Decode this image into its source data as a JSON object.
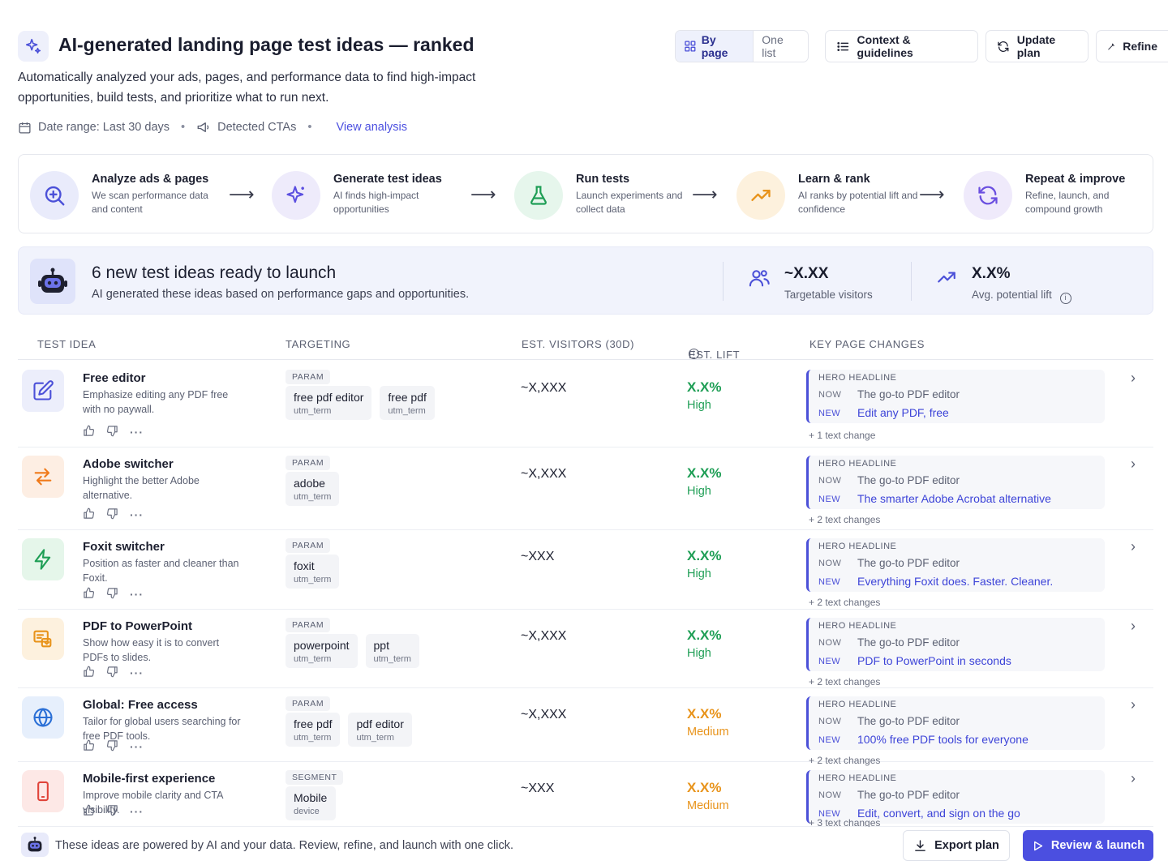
{
  "header": {
    "title": "AI-generated landing page test ideas — ranked",
    "subtitle": "Automatically analyzed your ads, pages, and performance data to find high-impact opportunities, build tests, and prioritize what to run next.",
    "date_range": "Date range: Last 30 days",
    "detected_ctas": "Detected CTAs",
    "view_analysis": "View analysis"
  },
  "toolbar": {
    "by_page": "By page",
    "one_list": "One list",
    "context": "Context & guidelines",
    "update": "Update plan",
    "refine": "Refine"
  },
  "steps": [
    {
      "title": "Analyze ads & pages",
      "desc": "We scan performance data and content",
      "icon": "search-zoom-icon",
      "color": "#e9ebfb"
    },
    {
      "title": "Generate test ideas",
      "desc": "AI finds high-impact opportunities",
      "icon": "sparkle-icon",
      "color": "#eeebfb"
    },
    {
      "title": "Run tests",
      "desc": "Launch experiments and collect data",
      "icon": "flask-icon",
      "color": "#e6f6ec"
    },
    {
      "title": "Learn & rank",
      "desc": "AI ranks by potential lift and confidence",
      "icon": "trend-up-icon",
      "color": "#fdf1dd"
    },
    {
      "title": "Repeat & improve",
      "desc": "Refine, launch, and compound growth",
      "icon": "refresh-icon",
      "color": "#efeafb"
    }
  ],
  "banner": {
    "title": "6 new test ideas ready to launch",
    "sub": "AI generated these ideas based on performance gaps and opportunities.",
    "visitors_value": "~X.XX",
    "visitors_label": "Targetable visitors",
    "lift_value": "X.X%",
    "lift_label": "Avg. potential lift"
  },
  "table": {
    "headers": [
      "TEST IDEA",
      "TARGETING",
      "EST. VISITORS (30D)",
      "EST. LIFT",
      "KEY PAGE CHANGES"
    ],
    "rows": [
      {
        "name": "Free editor",
        "desc": "Emphasize editing any PDF free with no paywall.",
        "icon": "edit-icon",
        "icon_color": "#4b50d8",
        "icon_bg": "#eceefb",
        "kind": "PARAM",
        "chips": [
          {
            "v": "free pdf editor",
            "k": "utm_term"
          },
          {
            "v": "free pdf",
            "k": "utm_term"
          }
        ],
        "visitors": "~X,XXX",
        "lift": "X.X%",
        "confidence": "High",
        "lift_color": "#1e9e55",
        "change_label": "HERO HEADLINE",
        "now_label": "NOW",
        "now": "The go-to PDF editor",
        "new_label": "NEW",
        "new": "Edit any PDF, free",
        "more": "+ 1 text change"
      },
      {
        "name": "Adobe switcher",
        "desc": "Highlight the better Adobe alternative.",
        "icon": "swap-arrows-icon",
        "icon_color": "#f07a1a",
        "icon_bg": "#fdeee3",
        "kind": "PARAM",
        "chips": [
          {
            "v": "adobe",
            "k": "utm_term"
          }
        ],
        "visitors": "~X,XXX",
        "lift": "X.X%",
        "confidence": "High",
        "lift_color": "#1e9e55",
        "change_label": "HERO HEADLINE",
        "now_label": "NOW",
        "now": "The go-to PDF editor",
        "new_label": "NEW",
        "new": "The smarter Adobe Acrobat alternative",
        "more": "+ 2 text changes"
      },
      {
        "name": "Foxit switcher",
        "desc": "Position as faster and cleaner than Foxit.",
        "icon": "lightning-icon",
        "icon_color": "#1e9e55",
        "icon_bg": "#e5f6ea",
        "kind": "PARAM",
        "chips": [
          {
            "v": "foxit",
            "k": "utm_term"
          }
        ],
        "visitors": "~XXX",
        "lift": "X.X%",
        "confidence": "High",
        "lift_color": "#1e9e55",
        "change_label": "HERO HEADLINE",
        "now_label": "NOW",
        "now": "The go-to PDF editor",
        "new_label": "NEW",
        "new": "Everything Foxit does. Faster. Cleaner.",
        "more": "+ 2 text changes"
      },
      {
        "name": "PDF to PowerPoint",
        "desc": "Show how easy it is to convert PDFs to slides.",
        "icon": "slides-icon",
        "icon_color": "#e8931a",
        "icon_bg": "#fdf1de",
        "kind": "PARAM",
        "chips": [
          {
            "v": "powerpoint",
            "k": "utm_term"
          },
          {
            "v": "ppt",
            "k": "utm_term"
          }
        ],
        "visitors": "~X,XXX",
        "lift": "X.X%",
        "confidence": "High",
        "lift_color": "#1e9e55",
        "change_label": "HERO HEADLINE",
        "now_label": "NOW",
        "now": "The go-to PDF editor",
        "new_label": "NEW",
        "new": "PDF to PowerPoint in seconds",
        "more": "+ 2 text changes"
      },
      {
        "name": "Global: Free access",
        "desc": "Tailor for global users searching for free PDF tools.",
        "icon": "globe-icon",
        "icon_color": "#2a6fd6",
        "icon_bg": "#e6effc",
        "kind": "PARAM",
        "chips": [
          {
            "v": "free pdf",
            "k": "utm_term"
          },
          {
            "v": "pdf editor",
            "k": "utm_term"
          }
        ],
        "visitors": "~X,XXX",
        "lift": "X.X%",
        "confidence": "Medium",
        "lift_color": "#e8931a",
        "change_label": "HERO HEADLINE",
        "now_label": "NOW",
        "now": "The go-to PDF editor",
        "new_label": "NEW",
        "new": "100% free PDF tools for everyone",
        "more": "+ 2 text changes"
      },
      {
        "name": "Mobile-first experience",
        "desc": "Improve mobile clarity and CTA visibility.",
        "icon": "mobile-icon",
        "icon_color": "#e0443a",
        "icon_bg": "#fde8e6",
        "kind": "SEGMENT",
        "chips": [
          {
            "v": "Mobile",
            "k": "device"
          }
        ],
        "visitors": "~XXX",
        "lift": "X.X%",
        "confidence": "Medium",
        "lift_color": "#e8931a",
        "change_label": "HERO HEADLINE",
        "now_label": "NOW",
        "now": "The go-to PDF editor",
        "new_label": "NEW",
        "new": "Edit, convert, and sign on the go",
        "more": "+ 3 text changes"
      }
    ]
  },
  "footer": {
    "text": "These ideas are powered by AI and your data. Review, refine, and launch with one click.",
    "export": "Export plan",
    "launch": "Review & launch"
  },
  "colors": {
    "accent": "#4b4fe0",
    "high": "#1e9e55",
    "medium": "#e8931a"
  }
}
